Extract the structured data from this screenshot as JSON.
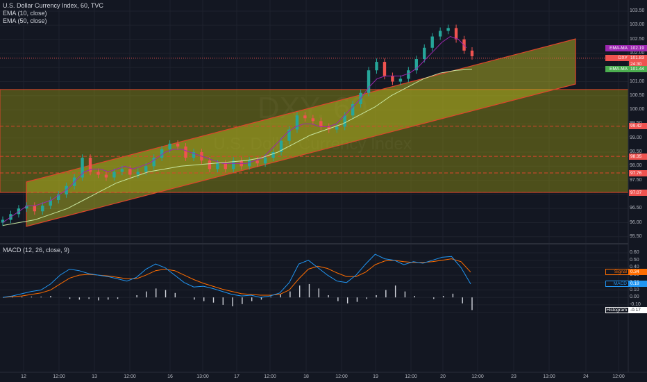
{
  "header": {
    "symbol_line": "U.S. Dollar Currency Index, 60, TVC",
    "ema10_line": "EMA (10, close)",
    "ema50_line": "EMA (50, close)",
    "macd_line": "MACD (12, 26, close, 9)"
  },
  "watermark": {
    "ticker": "DXY, 60",
    "name": "U.S. Dollar Currency Index"
  },
  "price_axis": {
    "ticks": [
      "103.50",
      "103.00",
      "102.50",
      "102.00",
      "101.50",
      "101.00",
      "100.50",
      "100.00",
      "99.50",
      "99.00",
      "98.50",
      "98.00",
      "97.50",
      "97.00",
      "96.50",
      "96.00",
      "95.50"
    ]
  },
  "macd_axis": {
    "ticks": [
      "0.60",
      "0.50",
      "0.40",
      "0.30",
      "0.20",
      "0.10",
      "0.00",
      "-0.10",
      "-0.20"
    ]
  },
  "time_axis": {
    "labels": [
      "12",
      "12:00",
      "13",
      "12:00",
      "16",
      "13:00",
      "17",
      "12:00",
      "18",
      "12:00",
      "19",
      "12:00",
      "20",
      "12:00",
      "23",
      "13:00",
      "24",
      "12:00"
    ]
  },
  "price_tags": [
    {
      "label": "EMA-MA",
      "value": "102.19",
      "color": "#9c27b0"
    },
    {
      "label": "DXY",
      "value": "101.83",
      "color": "#ef5350"
    },
    {
      "label": "",
      "value": "24:30",
      "color": "#ef5350"
    },
    {
      "label": "EMA-MA",
      "value": "101.44",
      "color": "#4caf50"
    },
    {
      "label": "",
      "value": "99.42",
      "color": "#ef5350"
    },
    {
      "label": "",
      "value": "98.35",
      "color": "#ef5350"
    },
    {
      "label": "",
      "value": "97.76",
      "color": "#ef5350"
    },
    {
      "label": "",
      "value": "97.07",
      "color": "#ef5350"
    }
  ],
  "macd_tags": [
    {
      "label": "Signal",
      "value": "0.34",
      "color": "#ff6d00"
    },
    {
      "label": "MACD",
      "value": "0.18",
      "color": "#2196f3"
    },
    {
      "label": "Histogram",
      "value": "-0.17",
      "color": "#ffffff"
    }
  ],
  "chart_data": {
    "type": "line",
    "price_levels": {
      "ema10": 102.19,
      "last_price": 101.83,
      "ema50": 101.44,
      "support_lines": [
        99.42,
        98.35,
        97.76,
        97.07
      ],
      "range_box": [
        97.07,
        100.72
      ]
    },
    "price_close": [
      96.1,
      96.3,
      96.5,
      96.6,
      96.4,
      96.6,
      96.8,
      97.0,
      97.3,
      97.6,
      98.3,
      97.8,
      97.7,
      97.6,
      97.8,
      97.9,
      97.7,
      97.8,
      98.0,
      98.3,
      98.6,
      98.8,
      98.7,
      98.3,
      98.5,
      98.2,
      97.9,
      98.1,
      97.9,
      98.2,
      98.0,
      98.2,
      98.1,
      98.3,
      98.5,
      98.9,
      99.3,
      99.8,
      99.7,
      99.6,
      99.4,
      99.3,
      99.4,
      99.8,
      100.2,
      100.6,
      101.4,
      101.7,
      101.2,
      101.0,
      101.1,
      101.4,
      101.8,
      102.2,
      102.6,
      102.8,
      102.9,
      102.5,
      102.1,
      101.9
    ],
    "ema10_path": [
      96.0,
      96.2,
      96.4,
      96.6,
      96.6,
      96.7,
      96.8,
      97.0,
      97.2,
      97.5,
      97.8,
      97.9,
      97.9,
      97.8,
      97.9,
      98.0,
      97.9,
      98.0,
      98.1,
      98.3,
      98.5,
      98.6,
      98.6,
      98.5,
      98.4,
      98.3,
      98.2,
      98.1,
      98.1,
      98.1,
      98.1,
      98.2,
      98.3,
      98.6,
      98.9,
      99.2,
      99.4,
      99.5,
      99.5,
      99.4,
      99.4,
      99.5,
      99.8,
      100.1,
      100.4,
      100.8,
      101.1,
      101.2,
      101.2,
      101.2,
      101.3,
      101.5,
      101.8,
      102.1,
      102.4,
      102.6,
      102.5,
      102.2
    ],
    "ema50_path": [
      95.9,
      96.0,
      96.1,
      96.3,
      96.5,
      96.8,
      97.1,
      97.4,
      97.6,
      97.8,
      97.9,
      98.0,
      98.05,
      98.1,
      98.15,
      98.2,
      98.3,
      98.5,
      98.8,
      99.1,
      99.3,
      99.5,
      99.8,
      100.1,
      100.5,
      100.8,
      101.1,
      101.3,
      101.4,
      101.44
    ],
    "macd": [
      0.0,
      0.02,
      0.05,
      0.08,
      0.1,
      0.18,
      0.3,
      0.38,
      0.36,
      0.32,
      0.3,
      0.28,
      0.25,
      0.22,
      0.27,
      0.38,
      0.45,
      0.4,
      0.3,
      0.2,
      0.14,
      0.15,
      0.12,
      0.08,
      0.04,
      0.02,
      0.03,
      0.0,
      0.02,
      0.06,
      0.2,
      0.45,
      0.5,
      0.4,
      0.3,
      0.22,
      0.2,
      0.3,
      0.45,
      0.58,
      0.52,
      0.5,
      0.44,
      0.48,
      0.46,
      0.5,
      0.54,
      0.55,
      0.4,
      0.18
    ],
    "signal": [
      0.0,
      0.01,
      0.02,
      0.04,
      0.06,
      0.1,
      0.18,
      0.26,
      0.3,
      0.31,
      0.3,
      0.29,
      0.27,
      0.25,
      0.25,
      0.3,
      0.36,
      0.38,
      0.36,
      0.3,
      0.24,
      0.19,
      0.15,
      0.11,
      0.08,
      0.05,
      0.04,
      0.03,
      0.03,
      0.04,
      0.1,
      0.25,
      0.38,
      0.42,
      0.39,
      0.33,
      0.28,
      0.28,
      0.34,
      0.44,
      0.49,
      0.5,
      0.48,
      0.47,
      0.47,
      0.48,
      0.5,
      0.52,
      0.48,
      0.34
    ],
    "histogram": [
      0.0,
      0.01,
      0.01,
      0.01,
      0.01,
      0.02,
      0.0,
      -0.02,
      -0.03,
      -0.02,
      -0.04,
      -0.03,
      -0.02,
      0.0,
      0.03,
      0.08,
      0.12,
      0.1,
      0.06,
      0.0,
      -0.03,
      -0.05,
      -0.07,
      -0.1,
      -0.12,
      -0.09,
      -0.05,
      -0.03,
      0.01,
      0.04,
      0.08,
      0.16,
      0.18,
      0.12,
      0.03,
      -0.05,
      -0.08,
      -0.06,
      -0.02,
      0.03,
      0.1,
      0.16,
      0.08,
      0.02,
      0.0,
      -0.02,
      0.02,
      0.05,
      -0.08,
      -0.17
    ]
  }
}
